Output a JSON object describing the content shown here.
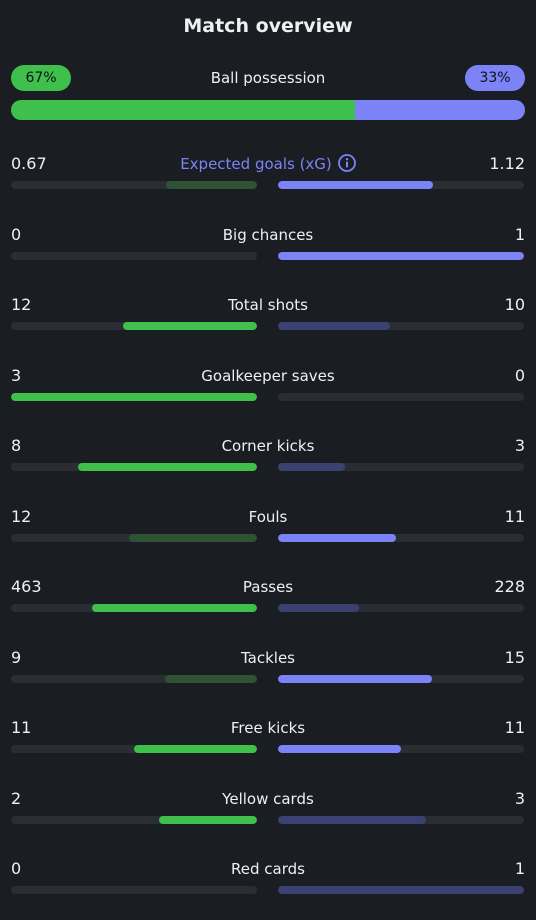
{
  "title": "Match overview",
  "possession": {
    "label": "Ball possession",
    "home_pct": "67%",
    "away_pct": "33%",
    "home_value": 67,
    "away_value": 33,
    "home_color": "#3fbf4c",
    "away_color": "#7c83f6"
  },
  "colors": {
    "home_strong": "#3fbf4c",
    "home_weak": "#2e5233",
    "away_strong": "#7c83f6",
    "away_weak": "#3b4170",
    "track": "#2a2e33"
  },
  "stats": [
    {
      "label": "Expected goals (xG)",
      "home": "0.67",
      "away": "1.12",
      "home_fill": 0.37,
      "away_fill": 0.63,
      "home_strong": false,
      "away_strong": true,
      "accent": true,
      "info_icon": "info-icon"
    },
    {
      "label": "Big chances",
      "home": "0",
      "away": "1",
      "home_fill": 0.0,
      "away_fill": 1.0,
      "home_strong": false,
      "away_strong": true
    },
    {
      "label": "Total shots",
      "home": "12",
      "away": "10",
      "home_fill": 0.545,
      "away_fill": 0.455,
      "home_strong": true,
      "away_strong": false
    },
    {
      "label": "Goalkeeper saves",
      "home": "3",
      "away": "0",
      "home_fill": 1.0,
      "away_fill": 0.0,
      "home_strong": true,
      "away_strong": false
    },
    {
      "label": "Corner kicks",
      "home": "8",
      "away": "3",
      "home_fill": 0.727,
      "away_fill": 0.273,
      "home_strong": true,
      "away_strong": false
    },
    {
      "label": "Fouls",
      "home": "12",
      "away": "11",
      "home_fill": 0.522,
      "away_fill": 0.478,
      "home_strong": false,
      "away_strong": true
    },
    {
      "label": "Passes",
      "home": "463",
      "away": "228",
      "home_fill": 0.67,
      "away_fill": 0.33,
      "home_strong": true,
      "away_strong": false
    },
    {
      "label": "Tackles",
      "home": "9",
      "away": "15",
      "home_fill": 0.375,
      "away_fill": 0.625,
      "home_strong": false,
      "away_strong": true
    },
    {
      "label": "Free kicks",
      "home": "11",
      "away": "11",
      "home_fill": 0.5,
      "away_fill": 0.5,
      "home_strong": true,
      "away_strong": true
    },
    {
      "label": "Yellow cards",
      "home": "2",
      "away": "3",
      "home_fill": 0.4,
      "away_fill": 0.6,
      "home_strong": true,
      "away_strong": false
    },
    {
      "label": "Red cards",
      "home": "0",
      "away": "1",
      "home_fill": 0.0,
      "away_fill": 1.0,
      "home_strong": false,
      "away_strong": false
    }
  ]
}
